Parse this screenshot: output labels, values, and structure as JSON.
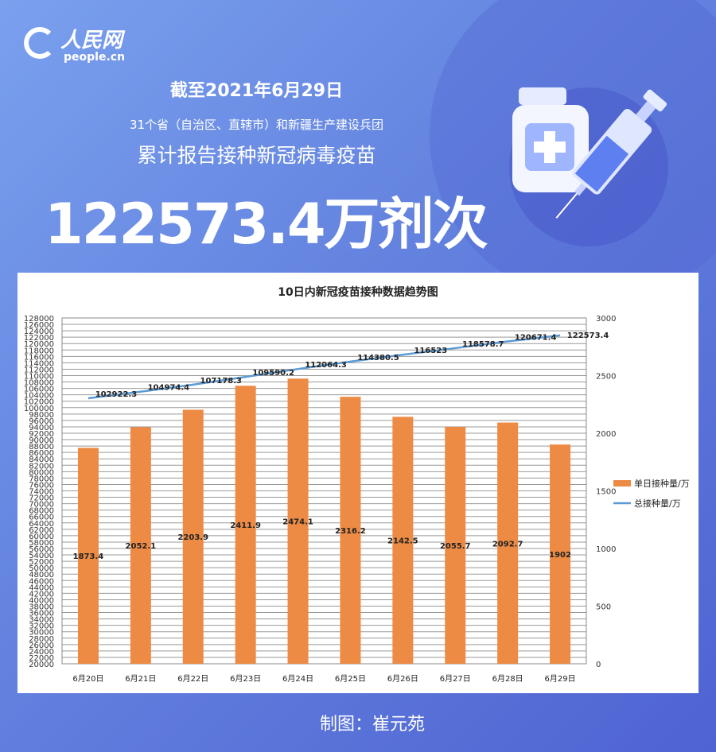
{
  "header": {
    "logo_cn": "人民网",
    "logo_en": "people.cn",
    "date": "截至2021年6月29日",
    "scope": "31个省（自治区、直辖市）和新疆生产建设兵团",
    "subtitle": "累计报告接种新冠病毒疫苗",
    "total": "122573.4万剂次"
  },
  "footer": {
    "credit": "制图：崔元苑"
  },
  "colors": {
    "bar": "#ed8b45",
    "line": "#5b9bd5"
  },
  "chart_data": {
    "type": "bar",
    "title": "10日内新冠疫苗接种数据趋势图",
    "categories": [
      "6月20日",
      "6月21日",
      "6月22日",
      "6月23日",
      "6月24日",
      "6月25日",
      "6月26日",
      "6月27日",
      "6月28日",
      "6月29日"
    ],
    "series": [
      {
        "name": "单日接种量/万",
        "type": "bar",
        "axis": "right",
        "values": [
          1873.4,
          2052.1,
          2203.9,
          2411.9,
          2474.1,
          2316.2,
          2142.5,
          2055.7,
          2092.7,
          1902
        ]
      },
      {
        "name": "总接种量/万",
        "type": "line",
        "axis": "left",
        "values": [
          102922.3,
          104974.4,
          107178.3,
          109590.2,
          112064.3,
          114380.5,
          116523,
          118578.7,
          120671.4,
          122573.4
        ]
      }
    ],
    "left_axis": {
      "ylim": [
        20000,
        128000
      ],
      "step": 2000
    },
    "right_axis": {
      "ylim": [
        0,
        3000
      ],
      "step": 500
    },
    "legend": "right",
    "grid": true
  }
}
